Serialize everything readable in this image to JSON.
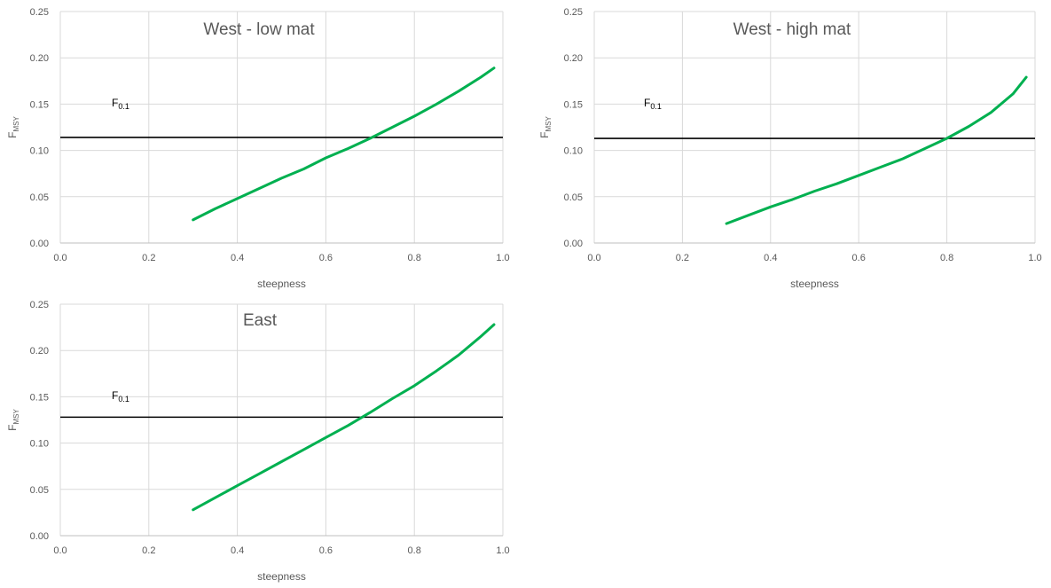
{
  "colors": {
    "series": "#00b050",
    "reference": "#000000",
    "grid": "#d9d9d9",
    "text": "#595959"
  },
  "chart_data": [
    {
      "type": "line",
      "title": "West - low mat",
      "xlabel": "steepness",
      "ylabel": {
        "main": "F",
        "sub": "MSY"
      },
      "xlim": [
        0,
        1
      ],
      "ylim": [
        0,
        0.25
      ],
      "xticks": [
        "0.0",
        "0.2",
        "0.4",
        "0.6",
        "0.8",
        "1.0"
      ],
      "yticks": [
        "0.00",
        "0.05",
        "0.10",
        "0.15",
        "0.20",
        "0.25"
      ],
      "grid": true,
      "series": [
        {
          "x": [
            0.3,
            0.35,
            0.4,
            0.45,
            0.5,
            0.55,
            0.6,
            0.65,
            0.7,
            0.75,
            0.8,
            0.85,
            0.9,
            0.95,
            0.98
          ],
          "y": [
            0.025,
            0.037,
            0.048,
            0.059,
            0.07,
            0.08,
            0.092,
            0.102,
            0.113,
            0.125,
            0.137,
            0.15,
            0.164,
            0.179,
            0.189
          ]
        }
      ],
      "reference": {
        "label": {
          "main": "F",
          "sub": "0.1"
        },
        "y": 0.114
      }
    },
    {
      "type": "line",
      "title": "West - high mat",
      "xlabel": "steepness",
      "ylabel": {
        "main": "F",
        "sub": "MSY"
      },
      "xlim": [
        0,
        1
      ],
      "ylim": [
        0,
        0.25
      ],
      "xticks": [
        "0.0",
        "0.2",
        "0.4",
        "0.6",
        "0.8",
        "1.0"
      ],
      "yticks": [
        "0.00",
        "0.05",
        "0.10",
        "0.15",
        "0.20",
        "0.25"
      ],
      "grid": true,
      "series": [
        {
          "x": [
            0.3,
            0.35,
            0.4,
            0.45,
            0.5,
            0.55,
            0.6,
            0.65,
            0.7,
            0.75,
            0.8,
            0.85,
            0.9,
            0.95,
            0.98
          ],
          "y": [
            0.021,
            0.03,
            0.039,
            0.047,
            0.056,
            0.064,
            0.073,
            0.082,
            0.091,
            0.102,
            0.113,
            0.126,
            0.141,
            0.161,
            0.179
          ]
        }
      ],
      "reference": {
        "label": {
          "main": "F",
          "sub": "0.1"
        },
        "y": 0.113
      }
    },
    {
      "type": "line",
      "title": "East",
      "xlabel": "steepness",
      "ylabel": {
        "main": "F",
        "sub": "MSY"
      },
      "xlim": [
        0,
        1
      ],
      "ylim": [
        0,
        0.25
      ],
      "xticks": [
        "0.0",
        "0.2",
        "0.4",
        "0.6",
        "0.8",
        "1.0"
      ],
      "yticks": [
        "0.00",
        "0.05",
        "0.10",
        "0.15",
        "0.20",
        "0.25"
      ],
      "grid": true,
      "series": [
        {
          "x": [
            0.3,
            0.35,
            0.4,
            0.45,
            0.5,
            0.55,
            0.6,
            0.65,
            0.7,
            0.75,
            0.8,
            0.85,
            0.9,
            0.95,
            0.98
          ],
          "y": [
            0.028,
            0.041,
            0.054,
            0.067,
            0.08,
            0.093,
            0.106,
            0.119,
            0.133,
            0.148,
            0.162,
            0.178,
            0.195,
            0.215,
            0.228
          ]
        }
      ],
      "reference": {
        "label": {
          "main": "F",
          "sub": "0.1"
        },
        "y": 0.128
      }
    }
  ]
}
